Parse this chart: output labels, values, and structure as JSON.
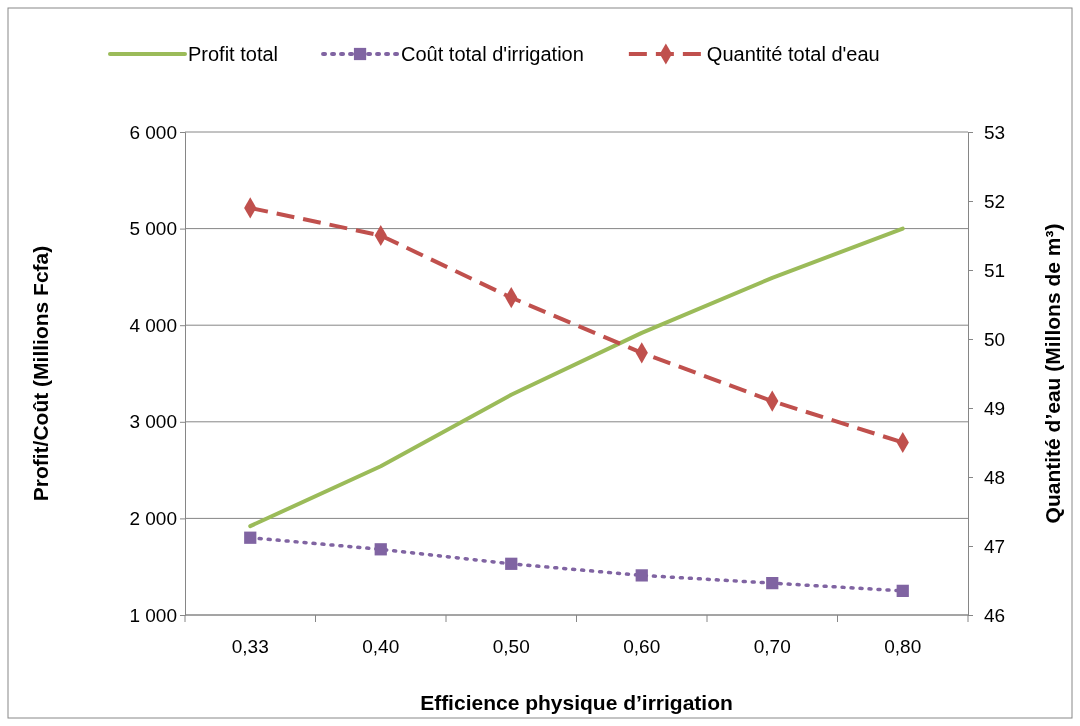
{
  "chart_data": {
    "type": "line",
    "xlabel": "Efficience physique d’irrigation",
    "ylabel": "Profit/Coût (Millions Fcfa)",
    "y2label": "Quantité d’eau (Millons de m³)",
    "categories": [
      "0,33",
      "0,40",
      "0,50",
      "0,60",
      "0,70",
      "0,80"
    ],
    "series": [
      {
        "name": "Profit total",
        "color": "#9bbb59",
        "values": [
          1920,
          2540,
          3280,
          3920,
          4490,
          5000
        ],
        "marker": "none",
        "line_style": "solid"
      },
      {
        "name": "Coût total d'irrigation",
        "color": "#8064a2",
        "values": [
          1800,
          1680,
          1530,
          1410,
          1330,
          1250
        ],
        "marker": "square",
        "line_style": "dotted"
      },
      {
        "name": "Quantité total d'eau",
        "color": "#c0504d",
        "values": [
          51.9,
          51.5,
          50.6,
          49.8,
          49.1,
          48.5
        ],
        "marker": "diamond",
        "line_style": "dashed",
        "axis": "y2"
      }
    ],
    "ylim": [
      1000,
      6000
    ],
    "yticks": [
      {
        "value": 1000,
        "label": "1 000"
      },
      {
        "value": 2000,
        "label": "2 000"
      },
      {
        "value": 3000,
        "label": "3 000"
      },
      {
        "value": 4000,
        "label": "4 000"
      },
      {
        "value": 5000,
        "label": "5 000"
      },
      {
        "value": 6000,
        "label": "6 000"
      }
    ],
    "y2lim": [
      46,
      53
    ],
    "y2ticks": [
      46,
      47,
      48,
      49,
      50,
      51,
      52,
      53
    ],
    "grid": "y",
    "legend": "top"
  }
}
